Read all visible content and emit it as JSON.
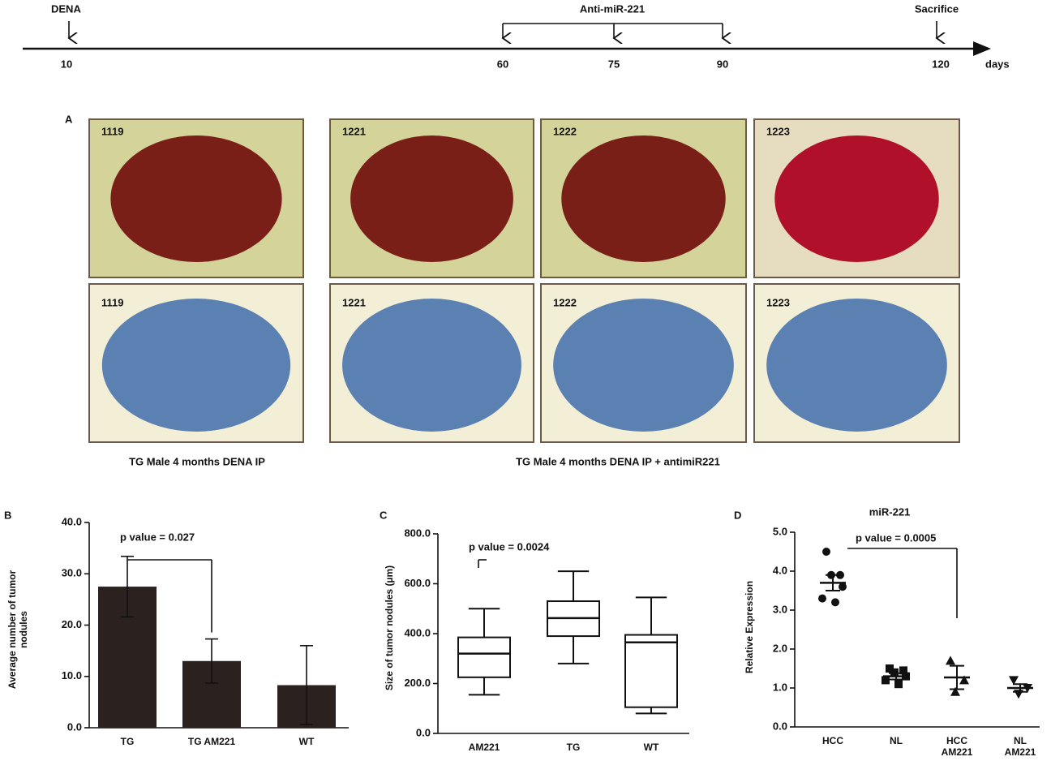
{
  "timeline": {
    "events": [
      "DENA",
      "Anti-miR-221",
      "Sacrifice"
    ],
    "ticks": [
      10,
      60,
      75,
      90,
      120
    ],
    "unit": "days"
  },
  "panel_a": {
    "label": "A",
    "top_row": [
      "1119",
      "1221",
      "1222",
      "1223"
    ],
    "bottom_row": [
      "1119",
      "1221",
      "1222",
      "1223"
    ],
    "captions": [
      "TG Male 4 months DENA IP",
      "TG Male 4 months DENA IP + antimiR221"
    ]
  },
  "chart_data": [
    {
      "type": "bar",
      "panel": "B",
      "y_label": "Average number of tumor nodules",
      "categories": [
        "TG",
        "TG AM221",
        "WT"
      ],
      "values": [
        27.5,
        13.0,
        8.3
      ],
      "errors": [
        5.9,
        4.3,
        7.7
      ],
      "color": "#2b211e",
      "ylim": [
        0,
        40
      ],
      "yticks": [
        {
          "value": 0,
          "label": "0.0"
        },
        {
          "value": 10,
          "label": "10.0"
        },
        {
          "value": 20,
          "label": "20.0"
        },
        {
          "value": 30,
          "label": "30.0"
        },
        {
          "value": 40,
          "label": "40.0"
        }
      ],
      "annotation": "p value = 0.027"
    },
    {
      "type": "box",
      "panel": "C",
      "y_label": "Size of tumor nodules (µm)",
      "categories": [
        "AM221",
        "TG",
        "WT"
      ],
      "min": [
        155,
        280,
        80
      ],
      "q1": [
        225,
        390,
        105
      ],
      "median": [
        320,
        462,
        365
      ],
      "q3": [
        385,
        530,
        395
      ],
      "max": [
        500,
        650,
        545
      ],
      "ylim": [
        0,
        800
      ],
      "yticks": [
        {
          "value": 0,
          "label": "0.0"
        },
        {
          "value": 200,
          "label": "200.0"
        },
        {
          "value": 400,
          "label": "400.0"
        },
        {
          "value": 600,
          "label": "600.0"
        },
        {
          "value": 800,
          "label": "800.0"
        }
      ],
      "annotation": "p value = 0.0024"
    },
    {
      "type": "dot",
      "panel": "D",
      "title": "miR-221",
      "y_label": "Relative Expression",
      "categories": [
        "HCC",
        "NL",
        "HCC AM221",
        "NL AM221"
      ],
      "points": [
        [
          4.5,
          3.9,
          3.9,
          3.6,
          3.3,
          3.2
        ],
        [
          1.5,
          1.45,
          1.4,
          1.3,
          1.2,
          1.1
        ],
        [
          1.7,
          1.2,
          0.9
        ],
        [
          1.2,
          1.0,
          0.85
        ]
      ],
      "markers": [
        "circle",
        "square",
        "triangle",
        "triangle-down"
      ],
      "mean": [
        3.7,
        1.3,
        1.27,
        1.0
      ],
      "sem": [
        0.2,
        0.08,
        0.3,
        0.1
      ],
      "ylim": [
        0,
        5
      ],
      "yticks": [
        {
          "value": 0,
          "label": "0.0"
        },
        {
          "value": 1,
          "label": "1.0"
        },
        {
          "value": 2,
          "label": "2.0"
        },
        {
          "value": 3,
          "label": "3.0"
        },
        {
          "value": 4,
          "label": "4.0"
        },
        {
          "value": 5,
          "label": "5.0"
        }
      ],
      "annotation": "p value = 0.0005"
    }
  ]
}
